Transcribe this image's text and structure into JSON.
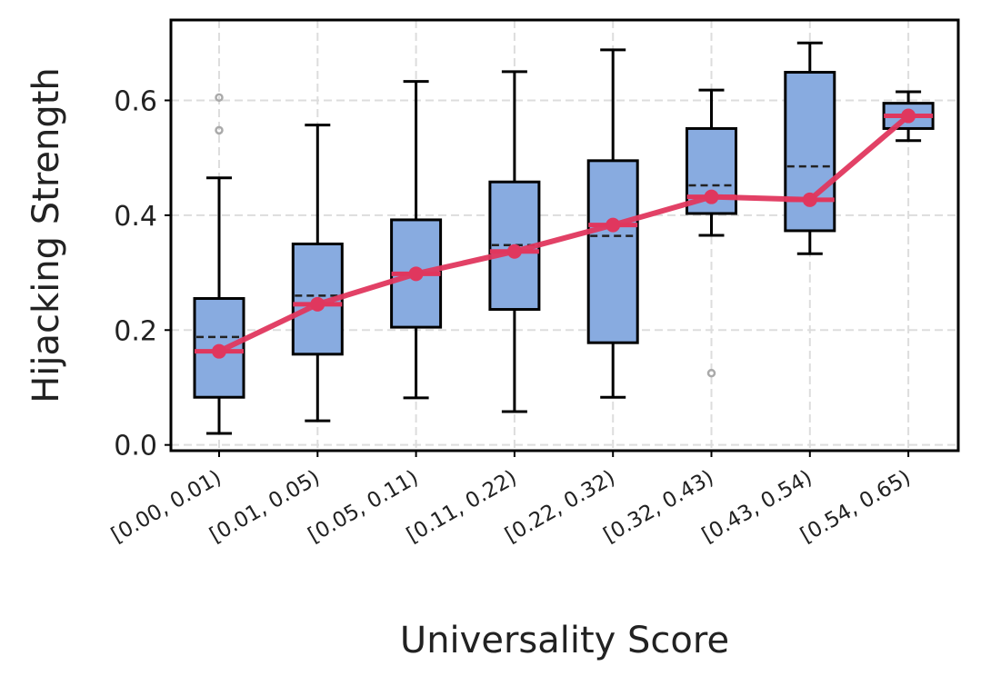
{
  "chart_data": {
    "type": "box",
    "xlabel": "Universality Score",
    "ylabel": "Hijacking Strength",
    "ylim": [
      -0.01,
      0.74
    ],
    "yticks": [
      "0.0",
      "0.2",
      "0.4",
      "0.6"
    ],
    "ytick_values": [
      0.0,
      0.2,
      0.4,
      0.6
    ],
    "grid": true,
    "categories": [
      "[0.00, 0.01)",
      "[0.01, 0.05)",
      "[0.05, 0.11)",
      "[0.11, 0.22)",
      "[0.22, 0.32)",
      "[0.32, 0.43)",
      "[0.43, 0.54)",
      "[0.54, 0.65)"
    ],
    "boxes": [
      {
        "whisker_low": 0.02,
        "q1": 0.083,
        "median": 0.163,
        "mean": 0.188,
        "q3": 0.255,
        "whisker_high": 0.465,
        "outliers": [
          0.548,
          0.605
        ]
      },
      {
        "whisker_low": 0.042,
        "q1": 0.158,
        "median": 0.245,
        "mean": 0.26,
        "q3": 0.35,
        "whisker_high": 0.557,
        "outliers": []
      },
      {
        "whisker_low": 0.082,
        "q1": 0.205,
        "median": 0.298,
        "mean": 0.298,
        "q3": 0.392,
        "whisker_high": 0.633,
        "outliers": []
      },
      {
        "whisker_low": 0.058,
        "q1": 0.236,
        "median": 0.337,
        "mean": 0.348,
        "q3": 0.458,
        "whisker_high": 0.65,
        "outliers": []
      },
      {
        "whisker_low": 0.083,
        "q1": 0.178,
        "median": 0.383,
        "mean": 0.364,
        "q3": 0.495,
        "whisker_high": 0.688,
        "outliers": []
      },
      {
        "whisker_low": 0.365,
        "q1": 0.403,
        "median": 0.432,
        "mean": 0.452,
        "q3": 0.551,
        "whisker_high": 0.618,
        "outliers": [
          0.125
        ]
      },
      {
        "whisker_low": 0.333,
        "q1": 0.373,
        "median": 0.427,
        "mean": 0.485,
        "q3": 0.649,
        "whisker_high": 0.7,
        "outliers": []
      },
      {
        "whisker_low": 0.53,
        "q1": 0.551,
        "median": 0.573,
        "mean": 0.573,
        "q3": 0.595,
        "whisker_high": 0.615,
        "outliers": []
      }
    ],
    "median_line": [
      0.163,
      0.245,
      0.298,
      0.337,
      0.383,
      0.432,
      0.427,
      0.573
    ],
    "colors": {
      "box_fill": "#88abe0",
      "box_edge": "#000000",
      "median_line": "#e0375e",
      "outlier": "#aaaaaa",
      "grid": "#dddddd"
    }
  }
}
